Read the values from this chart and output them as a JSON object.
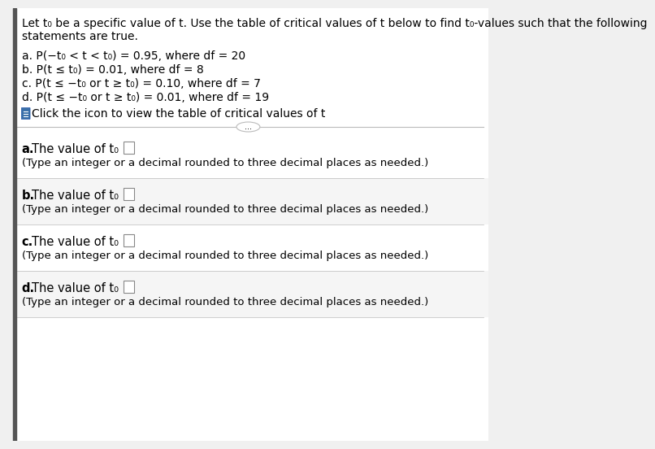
{
  "background_color": "#f0f0f0",
  "content_bg": "#ffffff",
  "header_line1": "Let t₀ be a specific value of t. Use the table of critical values of t below to find t₀-values such that the following",
  "header_line2": "statements are true.",
  "problems": [
    "a. P(−t₀ < t < t₀) = 0.95, where df = 20",
    "b. P(t ≤ t₀) = 0.01, where df = 8",
    "c. P(t ≤ −t₀ or t ≥ t₀) = 0.10, where df = 7",
    "d. P(t ≤ −t₀ or t ≥ t₀) = 0.01, where df = 19"
  ],
  "click_text": "Click the icon to view the table of critical values of t",
  "answer_labels": [
    "a.",
    "b.",
    "c.",
    "d."
  ],
  "answer_text": "The value of t₀ is ",
  "subtext": "(Type an integer or a decimal rounded to three decimal places as needed.)",
  "divider_color": "#bbbbbb",
  "left_bar_color": "#555555",
  "icon_color": "#3a6fa8",
  "text_color": "#000000",
  "answer_bg": [
    "#ffffff",
    "#e8e8e8",
    "#ffffff",
    "#e8e8e8"
  ]
}
